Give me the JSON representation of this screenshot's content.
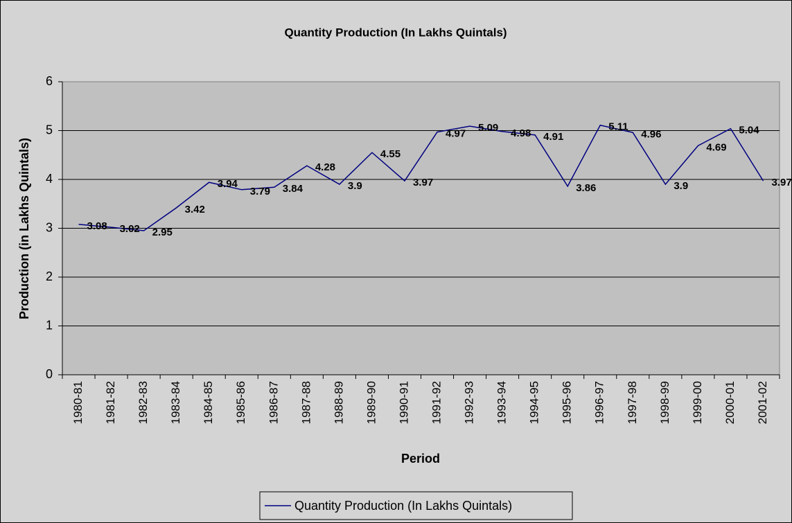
{
  "chart_data": {
    "type": "line",
    "title": "Quantity Production (In Lakhs Quintals)",
    "x_label": "Period",
    "y_label": "Production (in Lakhs Quintals)",
    "categories": [
      "1980-81",
      "1981-82",
      "1982-83",
      "1983-84",
      "1984-85",
      "1985-86",
      "1986-87",
      "1987-88",
      "1988-89",
      "1989-90",
      "1990-91",
      "1991-92",
      "1992-93",
      "1993-94",
      "1994-95",
      "1995-96",
      "1996-97",
      "1997-98",
      "1998-99",
      "1999-00",
      "2000-01",
      "2001-02"
    ],
    "series": [
      {
        "name": "Quantity Production (In Lakhs Quintals)",
        "color": "#000080",
        "values": [
          3.08,
          3.02,
          2.95,
          3.42,
          3.94,
          3.79,
          3.84,
          4.28,
          3.9,
          4.55,
          3.97,
          4.97,
          5.09,
          4.98,
          4.91,
          3.86,
          5.11,
          4.96,
          3.9,
          4.69,
          5.04,
          3.97
        ]
      }
    ],
    "ylim": [
      0,
      6
    ],
    "yticks": [
      0,
      1,
      2,
      3,
      4,
      5,
      6
    ],
    "grid": true,
    "legend": "bottom"
  }
}
